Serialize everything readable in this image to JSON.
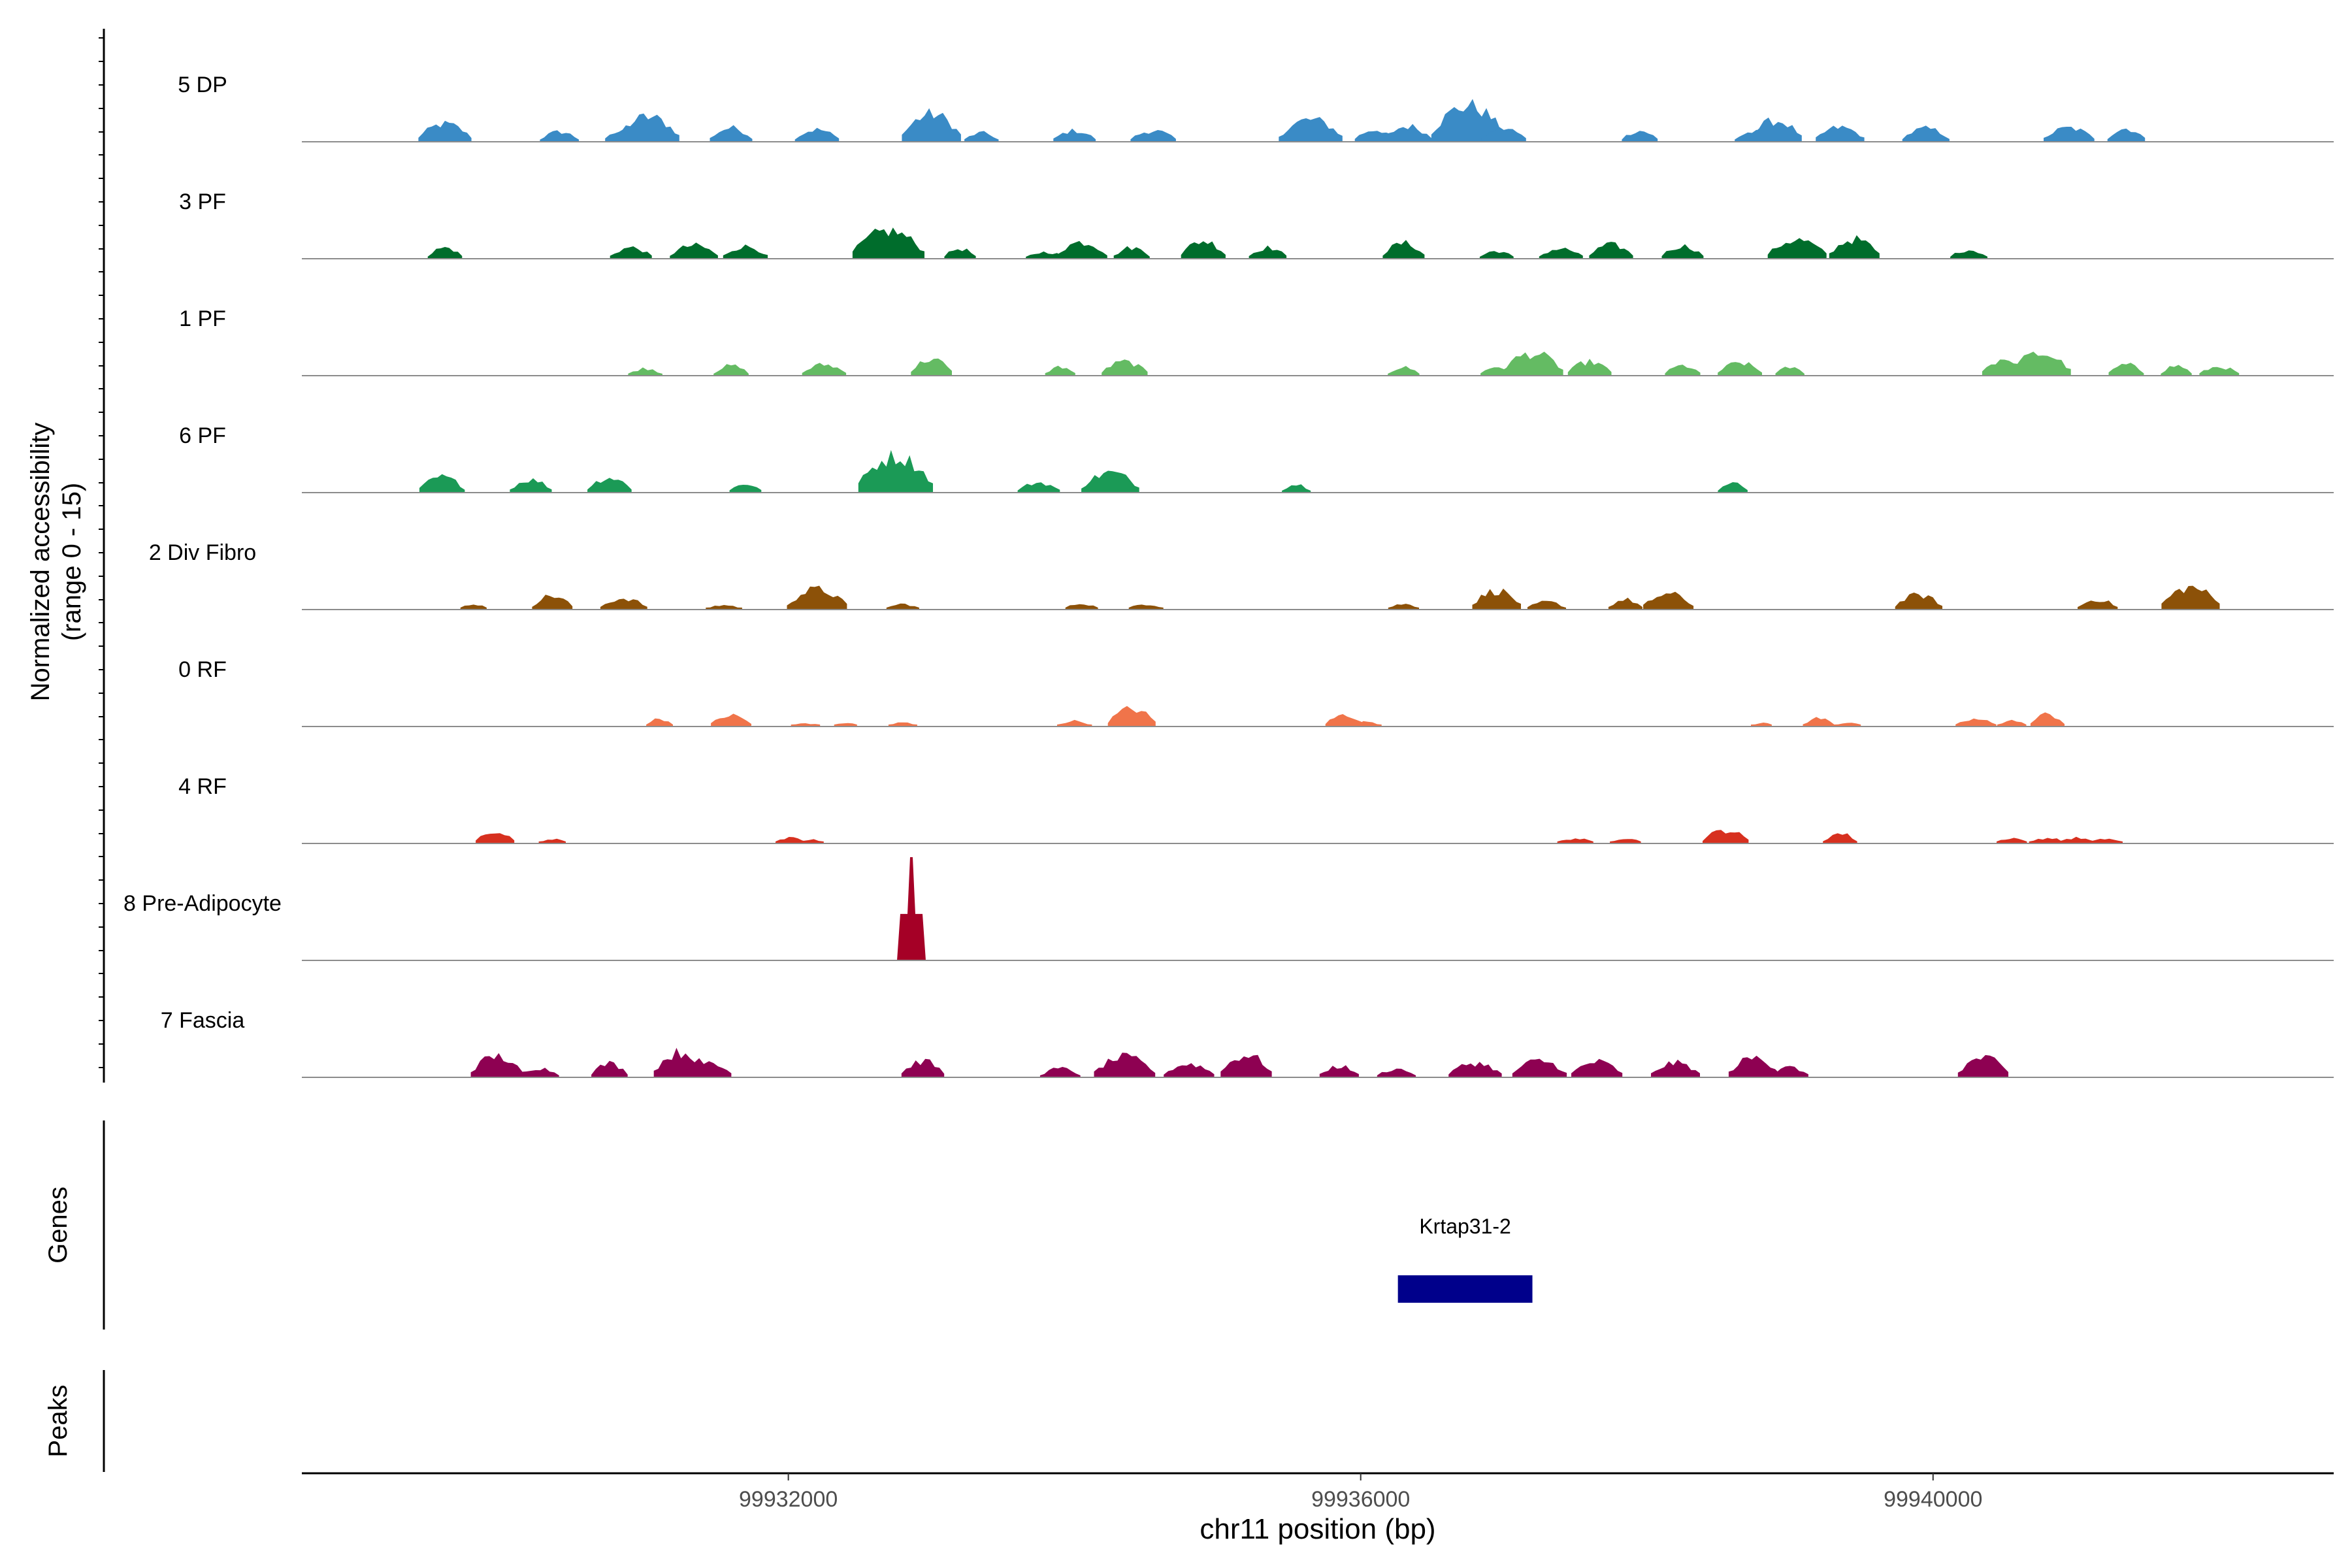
{
  "chart_data": {
    "type": "area",
    "title": "",
    "chromosome": "chr11",
    "x_label": "chr11 position (bp)",
    "xlim": [
      99928600,
      99942800
    ],
    "x_ticks": [
      {
        "value": 99932000,
        "label": "99932000"
      },
      {
        "value": 99936000,
        "label": "99936000"
      },
      {
        "value": 99940000,
        "label": "99940000"
      }
    ],
    "y_label_line1": "Normalized accessibility",
    "y_label_line2": "(range 0 - 15)",
    "y_range": [
      0,
      15
    ],
    "genes_label": "Genes",
    "peaks_label": "Peaks",
    "tracks": [
      {
        "name": "5 DP",
        "color": "#3a8bc6",
        "peaks": [
          [
            99929600,
            3.2
          ],
          [
            99930400,
            1.8
          ],
          [
            99930850,
            2.0
          ],
          [
            99931020,
            4.5
          ],
          [
            99931600,
            2.5
          ],
          [
            99932200,
            2.2
          ],
          [
            99933000,
            5.0
          ],
          [
            99933350,
            1.6
          ],
          [
            99934000,
            2.0
          ],
          [
            99934550,
            2.0
          ],
          [
            99935650,
            4.0
          ],
          [
            99936100,
            2.2
          ],
          [
            99936330,
            2.8
          ],
          [
            99936750,
            6.5
          ],
          [
            99937000,
            2.4
          ],
          [
            99937950,
            2.0
          ],
          [
            99938750,
            1.8
          ],
          [
            99938900,
            3.8
          ],
          [
            99939350,
            2.6
          ],
          [
            99939950,
            2.4
          ],
          [
            99940950,
            2.5
          ],
          [
            99941350,
            2.4
          ]
        ]
      },
      {
        "name": "3 PF",
        "color": "#006d2c",
        "peaks": [
          [
            99929600,
            2.0
          ],
          [
            99930900,
            2.0
          ],
          [
            99931340,
            2.4
          ],
          [
            99931700,
            2.2
          ],
          [
            99932700,
            5.0
          ],
          [
            99933200,
            1.8
          ],
          [
            99933800,
            1.2
          ],
          [
            99934050,
            3.0
          ],
          [
            99934400,
            2.0
          ],
          [
            99934900,
            3.2
          ],
          [
            99935350,
            2.0
          ],
          [
            99936300,
            2.8
          ],
          [
            99936950,
            1.4
          ],
          [
            99937400,
            1.8
          ],
          [
            99937750,
            2.5
          ],
          [
            99938250,
            2.3
          ],
          [
            99939050,
            3.4
          ],
          [
            99939450,
            3.5
          ],
          [
            99940250,
            1.6
          ]
        ]
      },
      {
        "name": "1 PF",
        "color": "#64bb63",
        "peaks": [
          [
            99931000,
            1.3
          ],
          [
            99931600,
            1.8
          ],
          [
            99932250,
            2.0
          ],
          [
            99933000,
            3.0
          ],
          [
            99933900,
            1.6
          ],
          [
            99934350,
            2.5
          ],
          [
            99936300,
            1.5
          ],
          [
            99936950,
            1.6
          ],
          [
            99937200,
            4.0
          ],
          [
            99937600,
            2.5
          ],
          [
            99938250,
            1.8
          ],
          [
            99938650,
            2.3
          ],
          [
            99939000,
            1.5
          ],
          [
            99940500,
            3.0
          ],
          [
            99940750,
            4.0
          ],
          [
            99941350,
            2.0
          ],
          [
            99941700,
            1.8
          ],
          [
            99942000,
            1.6
          ]
        ]
      },
      {
        "name": "6 PF",
        "color": "#1b9a56",
        "peaks": [
          [
            99929580,
            2.8
          ],
          [
            99930200,
            2.3
          ],
          [
            99930750,
            2.7
          ],
          [
            99931700,
            1.6
          ],
          [
            99932750,
            6.5
          ],
          [
            99933750,
            1.8
          ],
          [
            99934250,
            3.6
          ],
          [
            99935550,
            1.5
          ],
          [
            99938600,
            1.7
          ]
        ]
      },
      {
        "name": "2 Div Fibro",
        "color": "#8c5108",
        "peaks": [
          [
            99929800,
            1.0
          ],
          [
            99930350,
            2.5
          ],
          [
            99930850,
            2.0
          ],
          [
            99931550,
            0.8
          ],
          [
            99932200,
            3.6
          ],
          [
            99932800,
            1.0
          ],
          [
            99934050,
            1.1
          ],
          [
            99934500,
            1.0
          ],
          [
            99936300,
            1.0
          ],
          [
            99936950,
            3.4
          ],
          [
            99937300,
            1.4
          ],
          [
            99937850,
            1.8
          ],
          [
            99938150,
            2.8
          ],
          [
            99939900,
            2.6
          ],
          [
            99941150,
            1.8
          ],
          [
            99941800,
            4.0
          ]
        ]
      },
      {
        "name": "0 RF",
        "color": "#f0744a",
        "peaks": [
          [
            99931100,
            1.4
          ],
          [
            99931600,
            2.0
          ],
          [
            99932120,
            0.6
          ],
          [
            99932400,
            0.7
          ],
          [
            99932800,
            0.7
          ],
          [
            99934000,
            1.0
          ],
          [
            99934400,
            3.2
          ],
          [
            99935890,
            2.1
          ],
          [
            99936050,
            0.9
          ],
          [
            99938800,
            0.7
          ],
          [
            99939200,
            1.5
          ],
          [
            99939400,
            0.7
          ],
          [
            99940300,
            1.3
          ],
          [
            99940550,
            1.1
          ],
          [
            99940800,
            2.2
          ]
        ]
      },
      {
        "name": "4 RF",
        "color": "#d7301f",
        "peaks": [
          [
            99929950,
            2.0
          ],
          [
            99930350,
            0.8
          ],
          [
            99932020,
            1.0
          ],
          [
            99932160,
            0.8
          ],
          [
            99937500,
            0.9
          ],
          [
            99937850,
            1.0
          ],
          [
            99938550,
            2.4
          ],
          [
            99939350,
            1.8
          ],
          [
            99940550,
            1.0
          ],
          [
            99940800,
            1.0
          ],
          [
            99941000,
            1.0
          ],
          [
            99941200,
            0.8
          ]
        ]
      },
      {
        "name": "8 Pre-Adipocyte",
        "color": "#a50026",
        "peaks": [
          [
            99932860,
            15.0
          ]
        ]
      },
      {
        "name": "7 Fascia",
        "color": "#8e0152",
        "peaks": [
          [
            99929960,
            3.8
          ],
          [
            99930250,
            1.7
          ],
          [
            99930750,
            2.5
          ],
          [
            99931250,
            4.5
          ],
          [
            99931430,
            3.0
          ],
          [
            99932940,
            2.9
          ],
          [
            99933900,
            1.6
          ],
          [
            99934350,
            3.6
          ],
          [
            99934800,
            2.4
          ],
          [
            99935200,
            4.0
          ],
          [
            99935850,
            2.0
          ],
          [
            99936250,
            1.5
          ],
          [
            99936800,
            2.6
          ],
          [
            99937250,
            3.0
          ],
          [
            99937650,
            2.8
          ],
          [
            99938200,
            2.6
          ],
          [
            99938750,
            3.5
          ],
          [
            99939000,
            1.8
          ],
          [
            99940350,
            3.5
          ]
        ]
      }
    ],
    "genes": [
      {
        "name": "Krtap31-2",
        "start": 99936260,
        "end": 99937200,
        "color": "#00008b"
      }
    ],
    "peak_regions": []
  }
}
